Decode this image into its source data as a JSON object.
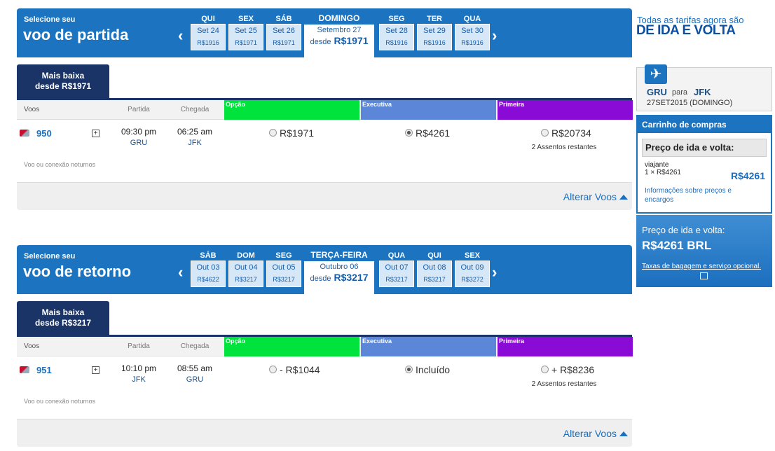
{
  "promo": {
    "line1": "Todas as tarifas agora são",
    "line2": "DE IDA E VOLTA"
  },
  "sections": [
    {
      "header": {
        "label": "Selecione seu",
        "title": "voo de partida"
      },
      "days_before": [
        {
          "dow": "QUI",
          "date": "Set 24",
          "price": "R$1916"
        },
        {
          "dow": "SEX",
          "date": "Set 25",
          "price": "R$1971"
        },
        {
          "dow": "SÁB",
          "date": "Set 26",
          "price": "R$1971"
        }
      ],
      "selected_day": {
        "dow": "DOMINGO",
        "date": "Setembro 27",
        "prefix": "desde",
        "price": "R$1971"
      },
      "days_after": [
        {
          "dow": "SEG",
          "date": "Set 28",
          "price": "R$1916"
        },
        {
          "dow": "TER",
          "date": "Set 29",
          "price": "R$1916"
        },
        {
          "dow": "QUA",
          "date": "Set 30",
          "price": "R$1916"
        }
      ],
      "tab": {
        "line1": "Mais baixa",
        "line2": "desde R$1971"
      },
      "columns": {
        "flights": "Voos",
        "departure": "Partida",
        "arrival": "Chegada",
        "fares": [
          "Opção",
          "Executiva",
          "Primeira"
        ]
      },
      "flight": {
        "number": "950",
        "dep_time": "09:30 pm",
        "dep_airport": "GRU",
        "arr_time": "06:25 am",
        "arr_airport": "JFK",
        "fares": [
          "R$1971",
          "R$4261",
          "R$20734"
        ],
        "seats": "2 Assentos restantes",
        "note": "Voo ou conexão noturnos"
      },
      "change": "Alterar Voos"
    },
    {
      "header": {
        "label": "Selecione seu",
        "title": "voo de retorno"
      },
      "days_before": [
        {
          "dow": "SÁB",
          "date": "Out 03",
          "price": "R$4622"
        },
        {
          "dow": "DOM",
          "date": "Out 04",
          "price": "R$3217"
        },
        {
          "dow": "SEG",
          "date": "Out 05",
          "price": "R$3217"
        }
      ],
      "selected_day": {
        "dow": "TERÇA-FEIRA",
        "date": "Outubro 06",
        "prefix": "desde",
        "price": "R$3217"
      },
      "days_after": [
        {
          "dow": "QUA",
          "date": "Out 07",
          "price": "R$3217"
        },
        {
          "dow": "QUI",
          "date": "Out 08",
          "price": "R$3217"
        },
        {
          "dow": "SEX",
          "date": "Out 09",
          "price": "R$3272"
        }
      ],
      "tab": {
        "line1": "Mais baixa",
        "line2": "desde R$3217"
      },
      "columns": {
        "flights": "Voos",
        "departure": "Partida",
        "arrival": "Chegada",
        "fares": [
          "Opção",
          "Executiva",
          "Primeira"
        ]
      },
      "flight": {
        "number": "951",
        "dep_time": "10:10 pm",
        "dep_airport": "JFK",
        "arr_time": "08:55 am",
        "arr_airport": "GRU",
        "fares": [
          "- R$1044",
          "Incluído",
          "+ R$8236"
        ],
        "seats": "2 Assentos restantes",
        "note": "Voo ou conexão noturnos"
      },
      "change": "Alterar Voos"
    }
  ],
  "sidebar": {
    "route": {
      "from": "GRU",
      "connector": "para",
      "to": "JFK",
      "date": "27SET2015 (DOMINGO)"
    },
    "cart": {
      "title": "Carrinho de compras",
      "subtitle": "Preço de ida e volta:",
      "traveler": "viajante",
      "quantity": "1 × R$4261",
      "amount": "R$4261",
      "info": "Informações sobre preços e encargos"
    },
    "total": {
      "label": "Preço de ida e volta:",
      "amount": "R$4261 BRL",
      "note": "Taxas de bagagem e serviço opcional."
    }
  }
}
